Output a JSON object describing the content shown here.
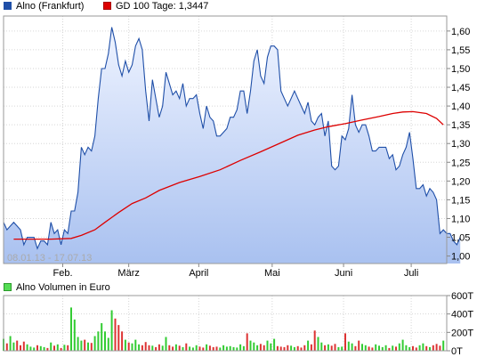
{
  "legend": {
    "price": {
      "label": "Alno (Frankfurt)",
      "color": "#1f4fa8"
    },
    "sma": {
      "label": "GD 100 Tage: 1,3447",
      "color": "#dd0000"
    },
    "volume": {
      "label": "Alno Volumen in Euro",
      "color": "#33cc33"
    }
  },
  "date_range": "08.01.13 - 17.07.13",
  "chart_data": [
    {
      "type": "area",
      "ylim": [
        0.98,
        1.64
      ],
      "yticks": [
        "1,00",
        "1,05",
        "1,10",
        "1,15",
        "1,20",
        "1,25",
        "1,30",
        "1,35",
        "1,40",
        "1,45",
        "1,50",
        "1,55",
        "1,60"
      ],
      "ytick_values": [
        1.0,
        1.05,
        1.1,
        1.15,
        1.2,
        1.25,
        1.3,
        1.35,
        1.4,
        1.45,
        1.5,
        1.55,
        1.6
      ],
      "xlabels": [
        "Feb.",
        "März",
        "April",
        "Mai",
        "Juni",
        "Juli"
      ],
      "xlabel_pos": [
        17.5,
        37,
        57.7,
        79.4,
        100.5,
        120.5
      ],
      "xlim": [
        0,
        131
      ],
      "grid": true,
      "series": [
        {
          "name": "Alno (Frankfurt)",
          "color": "#1f4fa8",
          "values": [
            1.09,
            1.07,
            1.08,
            1.09,
            1.08,
            1.07,
            1.03,
            1.05,
            1.05,
            1.05,
            1.02,
            1.04,
            1.04,
            1.03,
            1.09,
            1.06,
            1.07,
            1.03,
            1.07,
            1.06,
            1.12,
            1.12,
            1.17,
            1.29,
            1.27,
            1.29,
            1.28,
            1.32,
            1.42,
            1.5,
            1.5,
            1.54,
            1.61,
            1.57,
            1.51,
            1.48,
            1.52,
            1.49,
            1.51,
            1.56,
            1.58,
            1.55,
            1.44,
            1.36,
            1.47,
            1.42,
            1.37,
            1.4,
            1.49,
            1.46,
            1.43,
            1.44,
            1.42,
            1.46,
            1.4,
            1.42,
            1.42,
            1.43,
            1.38,
            1.34,
            1.4,
            1.37,
            1.36,
            1.32,
            1.32,
            1.33,
            1.34,
            1.37,
            1.37,
            1.39,
            1.44,
            1.44,
            1.38,
            1.44,
            1.52,
            1.55,
            1.48,
            1.46,
            1.53,
            1.56,
            1.56,
            1.55,
            1.44,
            1.42,
            1.4,
            1.42,
            1.44,
            1.42,
            1.4,
            1.38,
            1.41,
            1.36,
            1.35,
            1.37,
            1.38,
            1.32,
            1.36,
            1.24,
            1.23,
            1.24,
            1.32,
            1.31,
            1.34,
            1.43,
            1.35,
            1.33,
            1.35,
            1.35,
            1.32,
            1.28,
            1.28,
            1.29,
            1.29,
            1.29,
            1.26,
            1.27,
            1.23,
            1.24,
            1.27,
            1.29,
            1.33,
            1.26,
            1.18,
            1.18,
            1.19,
            1.16,
            1.18,
            1.17,
            1.15,
            1.06,
            1.07,
            1.06,
            1.06,
            1.04,
            1.03,
            1.05
          ]
        },
        {
          "name": "GD 100 Tage: 1,3447",
          "color": "#dd0000",
          "points": [
            [
              3,
              1.045
            ],
            [
              14,
              1.045
            ],
            [
              20,
              1.047
            ],
            [
              23,
              1.055
            ],
            [
              27,
              1.07
            ],
            [
              30,
              1.09
            ],
            [
              34,
              1.116
            ],
            [
              38,
              1.14
            ],
            [
              42,
              1.155
            ],
            [
              46,
              1.175
            ],
            [
              52,
              1.196
            ],
            [
              58,
              1.212
            ],
            [
              64,
              1.23
            ],
            [
              70,
              1.255
            ],
            [
              76,
              1.278
            ],
            [
              82,
              1.302
            ],
            [
              87,
              1.322
            ],
            [
              92,
              1.336
            ],
            [
              96,
              1.345
            ],
            [
              101,
              1.353
            ],
            [
              106,
              1.363
            ],
            [
              111,
              1.372
            ],
            [
              115,
              1.38
            ],
            [
              118,
              1.384
            ],
            [
              121,
              1.385
            ],
            [
              125,
              1.38
            ],
            [
              128,
              1.367
            ],
            [
              130,
              1.35
            ]
          ]
        }
      ]
    },
    {
      "type": "bar",
      "name": "Alno Volumen in Euro",
      "ylim": [
        0,
        600
      ],
      "yticks": [
        "600T",
        "400T",
        "200T",
        "0T"
      ],
      "ytick_values": [
        600,
        400,
        200,
        0
      ],
      "grid": true,
      "up_color": "#33cc33",
      "down_color": "#dd3333",
      "values": [
        130,
        80,
        160,
        90,
        110,
        60,
        100,
        70,
        45,
        35,
        60,
        50,
        40,
        30,
        90,
        55,
        70,
        30,
        65,
        60,
        470,
        340,
        150,
        110,
        120,
        90,
        85,
        160,
        210,
        300,
        210,
        140,
        440,
        350,
        280,
        210,
        120,
        90,
        80,
        120,
        70,
        60,
        95,
        60,
        55,
        40,
        70,
        55,
        150,
        60,
        45,
        70,
        55,
        40,
        80,
        45,
        35,
        60,
        45,
        35,
        70,
        55,
        40,
        45,
        35,
        60,
        45,
        50,
        40,
        35,
        70,
        50,
        190,
        110,
        90,
        60,
        75,
        60,
        110,
        80,
        130,
        50,
        45,
        40,
        60,
        55,
        40,
        50,
        35,
        60,
        110,
        70,
        220,
        150,
        90,
        60,
        70,
        55,
        75,
        40,
        45,
        190,
        100,
        80,
        50,
        110,
        75,
        60,
        45,
        35,
        70,
        55,
        40,
        60,
        30,
        55,
        45,
        80,
        120,
        60,
        40,
        50,
        35,
        60,
        80,
        50,
        40,
        60,
        75,
        55,
        110
      ]
    }
  ]
}
